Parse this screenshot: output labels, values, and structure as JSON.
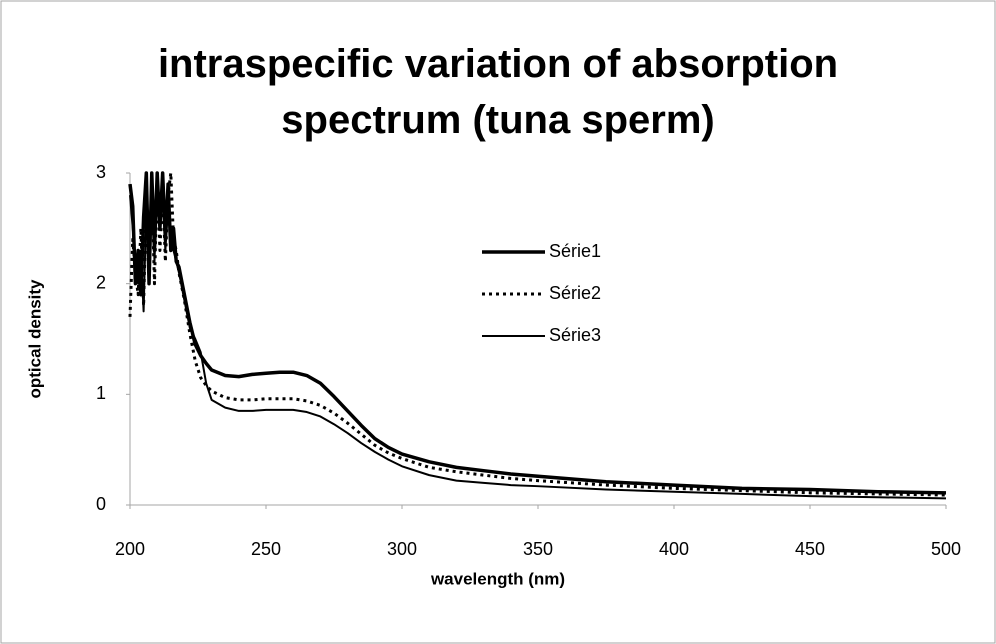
{
  "chart_data": {
    "type": "line",
    "title": "intraspecific variation of absorption spectrum (tuna sperm)",
    "x_label": "wavelength (nm)",
    "y_label": "optical density",
    "x": [
      200,
      201,
      202,
      203,
      204,
      205,
      206,
      207,
      208,
      209,
      210,
      211,
      212,
      213,
      214,
      215,
      216,
      217,
      218,
      220,
      222,
      224,
      226,
      228,
      230,
      235,
      240,
      245,
      250,
      255,
      260,
      265,
      270,
      275,
      280,
      285,
      290,
      295,
      300,
      310,
      320,
      330,
      340,
      350,
      375,
      400,
      425,
      450,
      475,
      500
    ],
    "series": [
      {
        "name": "Série1",
        "color": "#000000",
        "width": 3.5,
        "dash": "none",
        "values": [
          2.9,
          2.7,
          2.0,
          2.3,
          1.9,
          2.6,
          3.0,
          2.0,
          3.0,
          2.3,
          3.0,
          2.5,
          3.0,
          2.4,
          2.9,
          2.3,
          2.5,
          2.2,
          2.15,
          1.9,
          1.65,
          1.45,
          1.35,
          1.28,
          1.22,
          1.17,
          1.16,
          1.18,
          1.19,
          1.2,
          1.2,
          1.17,
          1.1,
          0.98,
          0.85,
          0.72,
          0.6,
          0.52,
          0.46,
          0.39,
          0.34,
          0.31,
          0.28,
          0.26,
          0.21,
          0.18,
          0.15,
          0.14,
          0.12,
          0.11
        ]
      },
      {
        "name": "Série2",
        "color": "#000000",
        "width": 3,
        "dash": "3 4",
        "values": [
          1.7,
          2.4,
          2.1,
          1.9,
          2.5,
          1.8,
          2.8,
          2.1,
          2.9,
          2.0,
          3.0,
          2.3,
          2.9,
          2.2,
          2.8,
          3.0,
          2.4,
          2.3,
          2.1,
          1.85,
          1.55,
          1.3,
          1.15,
          1.08,
          1.03,
          0.97,
          0.95,
          0.95,
          0.96,
          0.96,
          0.96,
          0.94,
          0.9,
          0.83,
          0.74,
          0.64,
          0.54,
          0.47,
          0.42,
          0.34,
          0.3,
          0.27,
          0.24,
          0.22,
          0.18,
          0.15,
          0.13,
          0.11,
          0.1,
          0.09
        ]
      },
      {
        "name": "Série3",
        "color": "#000000",
        "width": 2,
        "dash": "none",
        "values": [
          2.8,
          2.5,
          2.2,
          2.0,
          2.3,
          1.75,
          2.7,
          2.3,
          3.0,
          2.2,
          2.9,
          2.6,
          2.8,
          2.3,
          2.7,
          2.5,
          2.3,
          2.2,
          2.1,
          1.85,
          1.6,
          1.5,
          1.38,
          1.1,
          0.95,
          0.88,
          0.85,
          0.85,
          0.86,
          0.86,
          0.86,
          0.84,
          0.8,
          0.73,
          0.65,
          0.56,
          0.48,
          0.41,
          0.35,
          0.27,
          0.22,
          0.2,
          0.18,
          0.17,
          0.14,
          0.12,
          0.1,
          0.08,
          0.07,
          0.06
        ]
      }
    ],
    "xlim": [
      200,
      500
    ],
    "xticks": [
      200,
      250,
      300,
      350,
      400,
      450,
      500
    ],
    "ylim": [
      0,
      3
    ],
    "yticks": [
      0,
      1,
      2,
      3
    ],
    "grid": false
  }
}
